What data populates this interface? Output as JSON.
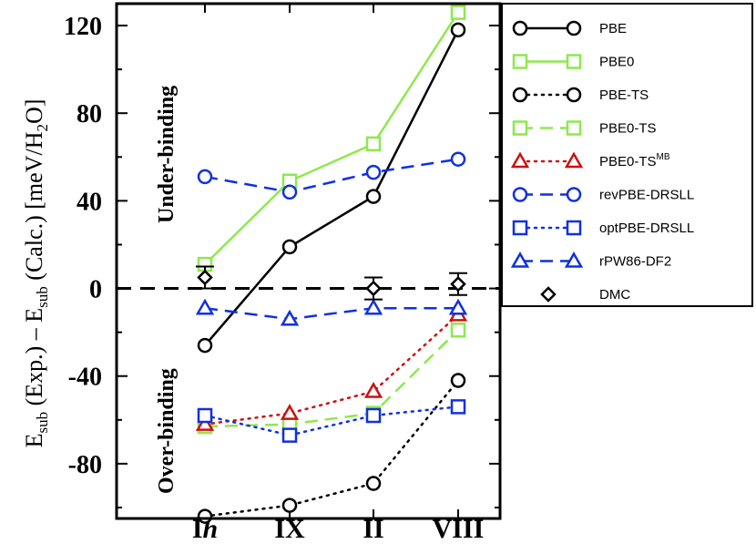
{
  "chart_data": {
    "type": "line",
    "title": "",
    "xlabel": "",
    "ylabel": {
      "main": "E",
      "sub1": "sub",
      "part2": " (Exp.) – E",
      "sub2": "sub",
      "part3": " (Calc.) [meV/H",
      "sub3": "2",
      "part4": "O]"
    },
    "ylim": [
      -105,
      130
    ],
    "yticks": [
      "120",
      "80",
      "40",
      "0",
      "-40",
      "-80"
    ],
    "ytick_values": [
      120,
      80,
      40,
      0,
      -40,
      -80
    ],
    "categories": [
      "I",
      "IX",
      "II",
      "VIII"
    ],
    "first_category_suffix": "h",
    "annotations": {
      "upper": "Under-binding",
      "lower": "Over-binding"
    },
    "series": [
      {
        "name": "PBE",
        "sup": "",
        "color": "#000000",
        "marker": "circle",
        "dash": "solid",
        "values": [
          -26,
          19,
          42,
          118
        ]
      },
      {
        "name": "PBE0",
        "sup": "",
        "color": "#8ee84e",
        "marker": "square",
        "dash": "solid",
        "values": [
          11,
          49,
          66,
          126
        ]
      },
      {
        "name": "PBE-TS",
        "sup": "",
        "color": "#000000",
        "marker": "circle",
        "dash": "dotted",
        "values": [
          -104,
          -99,
          -89,
          -42
        ]
      },
      {
        "name": "PBE0-TS",
        "sup": "",
        "color": "#8ee84e",
        "marker": "square",
        "dash": "dashed",
        "values": [
          -63,
          -62,
          -57,
          -19
        ]
      },
      {
        "name": "PBE0-TS",
        "sup": "MB",
        "color": "#cc1010",
        "marker": "triangle",
        "dash": "dotted",
        "values": [
          -62,
          -57,
          -47,
          -12
        ]
      },
      {
        "name": "revPBE-DRSLL",
        "sup": "",
        "color": "#1030e0",
        "marker": "circle",
        "dash": "dashed",
        "values": [
          51,
          44,
          53,
          59
        ]
      },
      {
        "name": "optPBE-DRSLL",
        "sup": "",
        "color": "#1030e0",
        "marker": "square",
        "dash": "dotted",
        "values": [
          -58,
          -67,
          -58,
          -54
        ]
      },
      {
        "name": "rPW86-DF2",
        "sup": "",
        "color": "#1030e0",
        "marker": "triangle",
        "dash": "dashed",
        "values": [
          -9,
          -14,
          -9,
          -9
        ]
      },
      {
        "name": "DMC",
        "sup": "",
        "color": "#000000",
        "marker": "diamond",
        "dash": "none",
        "values": [
          5,
          null,
          0,
          2
        ],
        "errors": [
          5,
          null,
          5,
          5
        ]
      }
    ]
  }
}
